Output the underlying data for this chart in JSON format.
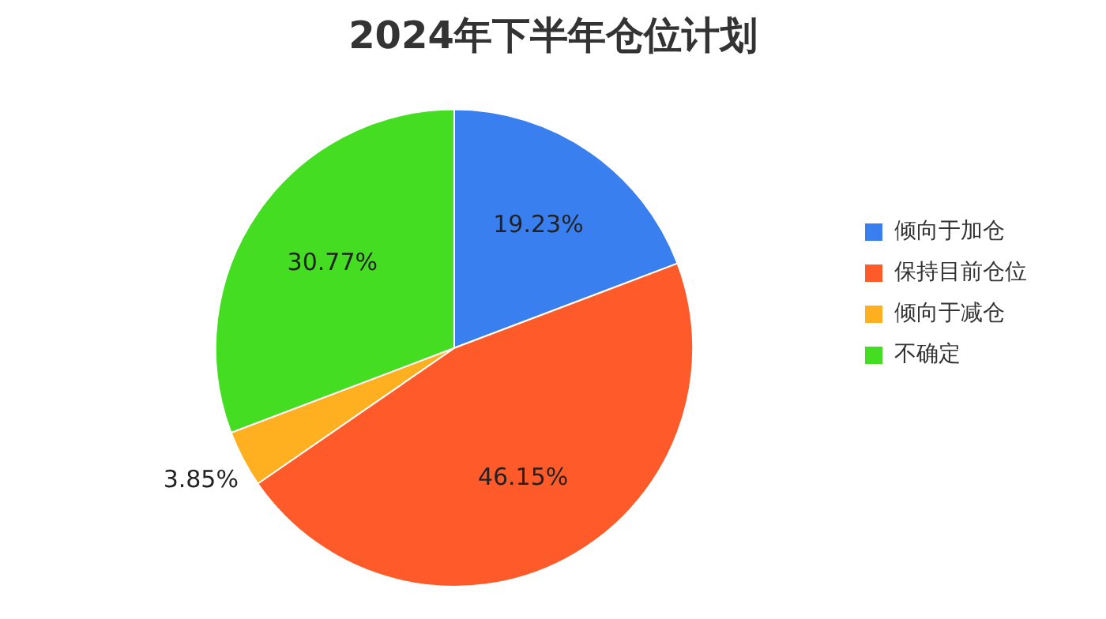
{
  "chart_data": {
    "type": "pie",
    "title": "2024年下半年仓位计划",
    "categories": [
      "倾向于加仓",
      "保持目前仓位",
      "倾向于减仓",
      "不确定"
    ],
    "values": [
      19.23,
      46.15,
      3.85,
      30.77
    ],
    "value_labels": [
      "19.23%",
      "46.15%",
      "3.85%",
      "30.77%"
    ],
    "colors": [
      "#3a7ff0",
      "#ff5a2a",
      "#ffb020",
      "#44dd22"
    ],
    "legend": "right"
  }
}
